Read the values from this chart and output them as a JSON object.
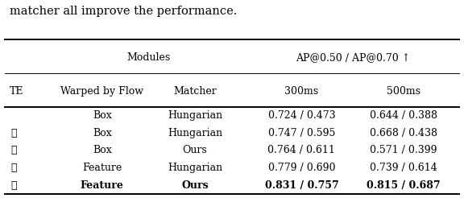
{
  "title_text": "matcher all improve the performance.",
  "group_header_left": "Modules",
  "group_header_right": "AP@0.50 / AP@0.70 ↑",
  "col_headers": [
    "TE",
    "Warped by Flow",
    "Matcher",
    "300ms",
    "500ms"
  ],
  "rows": [
    {
      "te": "",
      "warped": "Box",
      "matcher": "Hungarian",
      "ms300": "0.724 / 0.473",
      "ms500": "0.644 / 0.388",
      "bold": false
    },
    {
      "te": "✓",
      "warped": "Box",
      "matcher": "Hungarian",
      "ms300": "0.747 / 0.595",
      "ms500": "0.668 / 0.438",
      "bold": false
    },
    {
      "te": "✓",
      "warped": "Box",
      "matcher": "Ours",
      "ms300": "0.764 / 0.611",
      "ms500": "0.571 / 0.399",
      "bold": false
    },
    {
      "te": "✓",
      "warped": "Feature",
      "matcher": "Hungarian",
      "ms300": "0.779 / 0.690",
      "ms500": "0.739 / 0.614",
      "bold": false
    },
    {
      "te": "✓",
      "warped": "Feature",
      "matcher": "Ours",
      "ms300": "0.831 / 0.757",
      "ms500": "0.815 / 0.687",
      "bold": true
    }
  ],
  "font_size": 9.0,
  "background_color": "#ffffff",
  "title_fontsize": 10.5,
  "lw_thick": 1.4,
  "lw_thin": 0.7
}
